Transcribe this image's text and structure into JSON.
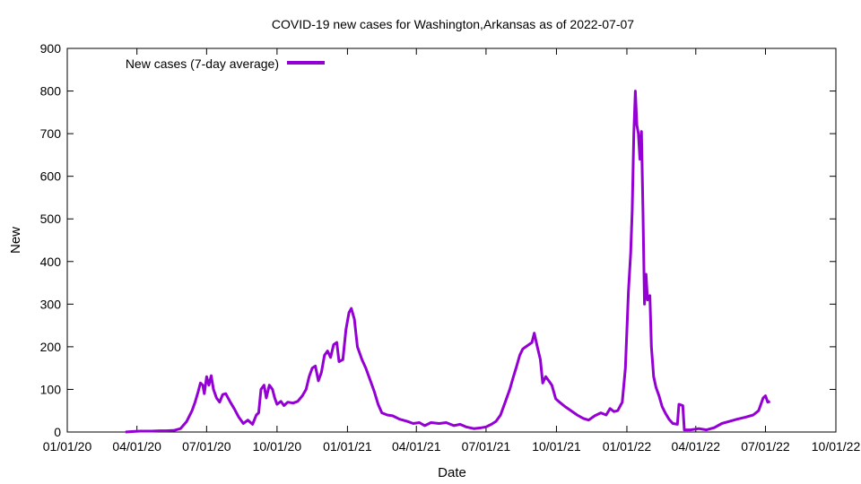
{
  "chart_data": {
    "type": "line",
    "title": "COVID-19 new cases for Washington,Arkansas as of 2022-07-07",
    "xlabel": "Date",
    "ylabel": "New",
    "xlim": [
      "2020-01-01",
      "2022-10-01"
    ],
    "ylim": [
      0,
      900
    ],
    "x_ticks": [
      "01/01/20",
      "04/01/20",
      "07/01/20",
      "10/01/20",
      "01/01/21",
      "04/01/21",
      "07/01/21",
      "10/01/21",
      "01/01/22",
      "04/01/22",
      "07/01/22",
      "10/01/22"
    ],
    "y_ticks": [
      0,
      100,
      200,
      300,
      400,
      500,
      600,
      700,
      800,
      900
    ],
    "grid": false,
    "legend_position": "top-left",
    "series": [
      {
        "name": "New cases (7-day average)",
        "color": "#9400d3",
        "points": [
          [
            "2020-03-17",
            0
          ],
          [
            "2020-03-25",
            1
          ],
          [
            "2020-04-05",
            2
          ],
          [
            "2020-04-20",
            2
          ],
          [
            "2020-05-01",
            3
          ],
          [
            "2020-05-10",
            3
          ],
          [
            "2020-05-20",
            4
          ],
          [
            "2020-05-28",
            8
          ],
          [
            "2020-06-05",
            25
          ],
          [
            "2020-06-12",
            50
          ],
          [
            "2020-06-16",
            70
          ],
          [
            "2020-06-20",
            95
          ],
          [
            "2020-06-23",
            115
          ],
          [
            "2020-06-26",
            110
          ],
          [
            "2020-06-28",
            90
          ],
          [
            "2020-07-01",
            130
          ],
          [
            "2020-07-04",
            110
          ],
          [
            "2020-07-07",
            132
          ],
          [
            "2020-07-10",
            100
          ],
          [
            "2020-07-14",
            80
          ],
          [
            "2020-07-18",
            70
          ],
          [
            "2020-07-22",
            88
          ],
          [
            "2020-07-26",
            90
          ],
          [
            "2020-08-01",
            70
          ],
          [
            "2020-08-06",
            55
          ],
          [
            "2020-08-12",
            35
          ],
          [
            "2020-08-18",
            20
          ],
          [
            "2020-08-24",
            28
          ],
          [
            "2020-08-30",
            18
          ],
          [
            "2020-09-04",
            40
          ],
          [
            "2020-09-07",
            45
          ],
          [
            "2020-09-10",
            100
          ],
          [
            "2020-09-14",
            110
          ],
          [
            "2020-09-17",
            80
          ],
          [
            "2020-09-21",
            110
          ],
          [
            "2020-09-25",
            100
          ],
          [
            "2020-09-28",
            80
          ],
          [
            "2020-10-01",
            65
          ],
          [
            "2020-10-06",
            72
          ],
          [
            "2020-10-10",
            62
          ],
          [
            "2020-10-15",
            70
          ],
          [
            "2020-10-22",
            68
          ],
          [
            "2020-10-28",
            72
          ],
          [
            "2020-11-03",
            85
          ],
          [
            "2020-11-08",
            100
          ],
          [
            "2020-11-12",
            130
          ],
          [
            "2020-11-16",
            150
          ],
          [
            "2020-11-20",
            155
          ],
          [
            "2020-11-24",
            120
          ],
          [
            "2020-11-28",
            140
          ],
          [
            "2020-12-02",
            180
          ],
          [
            "2020-12-06",
            190
          ],
          [
            "2020-12-10",
            175
          ],
          [
            "2020-12-14",
            205
          ],
          [
            "2020-12-18",
            210
          ],
          [
            "2020-12-21",
            165
          ],
          [
            "2020-12-26",
            170
          ],
          [
            "2020-12-30",
            240
          ],
          [
            "2021-01-03",
            280
          ],
          [
            "2021-01-06",
            290
          ],
          [
            "2021-01-10",
            265
          ],
          [
            "2021-01-14",
            200
          ],
          [
            "2021-01-20",
            170
          ],
          [
            "2021-01-25",
            150
          ],
          [
            "2021-01-30",
            125
          ],
          [
            "2021-02-05",
            95
          ],
          [
            "2021-02-10",
            65
          ],
          [
            "2021-02-15",
            45
          ],
          [
            "2021-02-22",
            40
          ],
          [
            "2021-03-01",
            38
          ],
          [
            "2021-03-10",
            30
          ],
          [
            "2021-03-20",
            25
          ],
          [
            "2021-03-28",
            20
          ],
          [
            "2021-04-05",
            22
          ],
          [
            "2021-04-12",
            15
          ],
          [
            "2021-04-20",
            22
          ],
          [
            "2021-05-01",
            20
          ],
          [
            "2021-05-10",
            22
          ],
          [
            "2021-05-20",
            15
          ],
          [
            "2021-05-28",
            18
          ],
          [
            "2021-06-05",
            12
          ],
          [
            "2021-06-15",
            8
          ],
          [
            "2021-06-25",
            10
          ],
          [
            "2021-07-01",
            12
          ],
          [
            "2021-07-08",
            18
          ],
          [
            "2021-07-14",
            25
          ],
          [
            "2021-07-20",
            40
          ],
          [
            "2021-07-26",
            70
          ],
          [
            "2021-08-01",
            100
          ],
          [
            "2021-08-05",
            125
          ],
          [
            "2021-08-10",
            155
          ],
          [
            "2021-08-14",
            180
          ],
          [
            "2021-08-18",
            195
          ],
          [
            "2021-08-22",
            200
          ],
          [
            "2021-08-26",
            205
          ],
          [
            "2021-08-30",
            210
          ],
          [
            "2021-09-02",
            232
          ],
          [
            "2021-09-06",
            200
          ],
          [
            "2021-09-10",
            170
          ],
          [
            "2021-09-13",
            115
          ],
          [
            "2021-09-17",
            130
          ],
          [
            "2021-09-21",
            120
          ],
          [
            "2021-09-25",
            110
          ],
          [
            "2021-09-30",
            78
          ],
          [
            "2021-10-05",
            70
          ],
          [
            "2021-10-12",
            60
          ],
          [
            "2021-10-20",
            50
          ],
          [
            "2021-10-28",
            40
          ],
          [
            "2021-11-05",
            32
          ],
          [
            "2021-11-12",
            28
          ],
          [
            "2021-11-20",
            38
          ],
          [
            "2021-11-28",
            45
          ],
          [
            "2021-12-05",
            40
          ],
          [
            "2021-12-10",
            55
          ],
          [
            "2021-12-15",
            48
          ],
          [
            "2021-12-20",
            50
          ],
          [
            "2021-12-26",
            70
          ],
          [
            "2021-12-30",
            150
          ],
          [
            "2022-01-03",
            330
          ],
          [
            "2022-01-06",
            420
          ],
          [
            "2022-01-08",
            520
          ],
          [
            "2022-01-10",
            700
          ],
          [
            "2022-01-12",
            800
          ],
          [
            "2022-01-14",
            720
          ],
          [
            "2022-01-16",
            700
          ],
          [
            "2022-01-18",
            640
          ],
          [
            "2022-01-20",
            705
          ],
          [
            "2022-01-22",
            520
          ],
          [
            "2022-01-24",
            300
          ],
          [
            "2022-01-26",
            370
          ],
          [
            "2022-01-28",
            310
          ],
          [
            "2022-01-31",
            320
          ],
          [
            "2022-02-02",
            200
          ],
          [
            "2022-02-05",
            130
          ],
          [
            "2022-02-08",
            105
          ],
          [
            "2022-02-12",
            85
          ],
          [
            "2022-02-16",
            60
          ],
          [
            "2022-02-20",
            45
          ],
          [
            "2022-02-25",
            30
          ],
          [
            "2022-03-02",
            20
          ],
          [
            "2022-03-08",
            18
          ],
          [
            "2022-03-10",
            65
          ],
          [
            "2022-03-15",
            62
          ],
          [
            "2022-03-17",
            5
          ],
          [
            "2022-03-25",
            5
          ],
          [
            "2022-04-05",
            8
          ],
          [
            "2022-04-15",
            5
          ],
          [
            "2022-04-25",
            10
          ],
          [
            "2022-05-05",
            20
          ],
          [
            "2022-05-15",
            25
          ],
          [
            "2022-05-25",
            30
          ],
          [
            "2022-06-05",
            35
          ],
          [
            "2022-06-15",
            40
          ],
          [
            "2022-06-22",
            50
          ],
          [
            "2022-06-28",
            80
          ],
          [
            "2022-07-01",
            85
          ],
          [
            "2022-07-04",
            70
          ],
          [
            "2022-07-07",
            72
          ]
        ]
      }
    ]
  }
}
